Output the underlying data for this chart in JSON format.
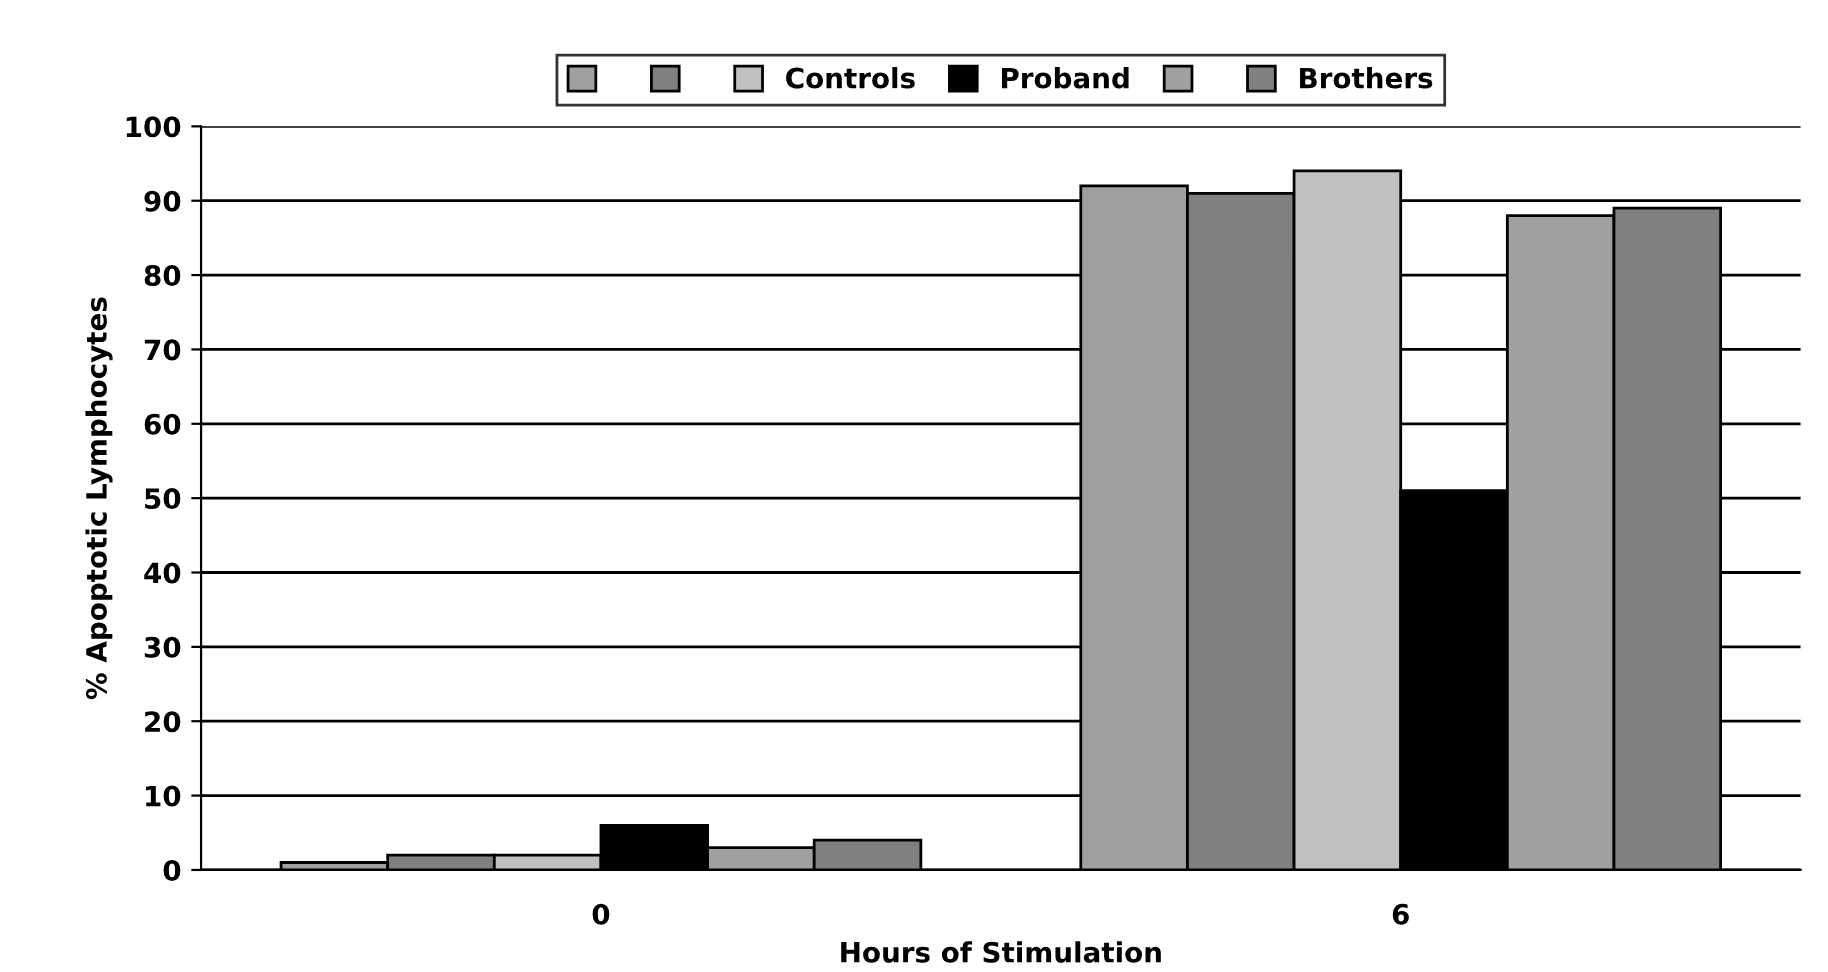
{
  "chart_data": {
    "type": "bar",
    "xlabel": "Hours of Stimulation",
    "ylabel": "% Apoptotic Lymphocytes",
    "categories": [
      "0",
      "6"
    ],
    "series": [
      {
        "color": "#a0a0a0",
        "values": [
          1,
          92
        ]
      },
      {
        "color": "#808080",
        "values": [
          2,
          91
        ]
      },
      {
        "name": "Controls",
        "color": "#c0c0c0",
        "values": [
          2,
          94
        ]
      },
      {
        "name": "Proband",
        "color": "#000000",
        "values": [
          6,
          51
        ]
      },
      {
        "color": "#a0a0a0",
        "values": [
          3,
          88
        ]
      },
      {
        "name": "Brothers",
        "color": "#808080",
        "values": [
          4,
          89
        ]
      }
    ],
    "ylim": [
      0,
      100
    ],
    "yticks": [
      0,
      10,
      20,
      30,
      40,
      50,
      60,
      70,
      80,
      90,
      100
    ],
    "grid": "y",
    "legend": "top"
  }
}
